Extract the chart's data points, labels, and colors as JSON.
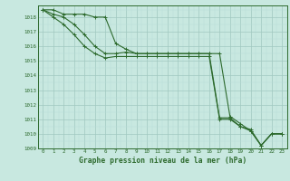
{
  "line1": [
    1018.5,
    1018.5,
    1018.2,
    1018.2,
    1018.2,
    1018.0,
    1018.0,
    1016.2,
    1015.8,
    1015.5,
    1015.5,
    1015.5,
    1015.5,
    1015.5,
    1015.5,
    1015.5,
    1015.5,
    1015.5,
    1011.2,
    1010.7,
    1010.2,
    1009.2,
    1010.0,
    1010.0
  ],
  "line2": [
    1018.5,
    1018.2,
    1018.0,
    1017.5,
    1016.8,
    1016.0,
    1015.5,
    1015.5,
    1015.6,
    1015.5,
    1015.5,
    1015.5,
    1015.5,
    1015.5,
    1015.5,
    1015.5,
    1015.5,
    1011.1,
    1011.1,
    1010.5,
    1010.3,
    1009.2,
    1010.0,
    1010.0
  ],
  "line3": [
    1018.5,
    1018.0,
    1017.5,
    1016.8,
    1016.0,
    1015.5,
    1015.2,
    1015.3,
    1015.3,
    1015.3,
    1015.3,
    1015.3,
    1015.3,
    1015.3,
    1015.3,
    1015.3,
    1015.3,
    1011.0,
    1011.0,
    1010.5,
    1010.2,
    1009.2,
    1010.0,
    1010.0
  ],
  "x": [
    0,
    1,
    2,
    3,
    4,
    5,
    6,
    7,
    8,
    9,
    10,
    11,
    12,
    13,
    14,
    15,
    16,
    17,
    18,
    19,
    20,
    21,
    22,
    23
  ],
  "ylim": [
    1009.0,
    1018.8
  ],
  "yticks": [
    1009,
    1010,
    1011,
    1012,
    1013,
    1014,
    1015,
    1016,
    1017,
    1018
  ],
  "xtick_labels": [
    "0",
    "1",
    "2",
    "3",
    "4",
    "5",
    "6",
    "7",
    "8",
    "9",
    "10",
    "11",
    "12",
    "13",
    "14",
    "15",
    "16",
    "17",
    "18",
    "19",
    "20",
    "21",
    "22",
    "23"
  ],
  "line_color": "#2d6a2d",
  "bg_color": "#c8e8e0",
  "grid_major_color": "#a0c8c0",
  "grid_minor_color": "#b8dcd8",
  "xlabel": "Graphe pression niveau de la mer (hPa)",
  "tick_fontsize": 4.2,
  "xlabel_fontsize": 5.8
}
